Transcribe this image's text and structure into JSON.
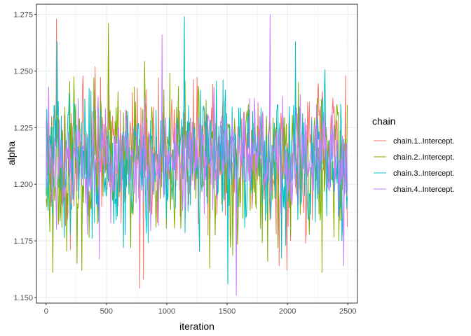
{
  "chart_data": {
    "type": "line",
    "title": "",
    "xlabel": "iteration",
    "ylabel": "alpha",
    "xlim": [
      -80,
      2580
    ],
    "ylim": [
      1.1475,
      1.2795
    ],
    "x_ticks": [
      0,
      500,
      1000,
      1500,
      2000,
      2500
    ],
    "x_tick_labels": [
      "0",
      "500",
      "1000",
      "1500",
      "2000",
      "2500"
    ],
    "y_ticks": [
      1.15,
      1.175,
      1.2,
      1.225,
      1.25,
      1.275
    ],
    "y_tick_labels": [
      "1.150",
      "1.175",
      "1.200",
      "1.225",
      "1.250",
      "1.275"
    ],
    "grid": true,
    "legend_position": "right",
    "legend_title": "chain",
    "iterations": {
      "start": 1,
      "end": 2500,
      "step": 5
    },
    "series": [
      {
        "name": "chain.1..Intercept.",
        "color": "#F8766D",
        "mean": 1.2125,
        "sd": 0.0145,
        "seed": 11,
        "extremes": [
          [
            85,
            1.273
          ],
          [
            200,
            1.171
          ],
          [
            405,
            1.252
          ],
          [
            775,
            1.154
          ],
          [
            805,
            1.158
          ],
          [
            930,
            1.247
          ],
          [
            1930,
            1.164
          ],
          [
            1995,
            1.162
          ],
          [
            2085,
            1.231
          ],
          [
            2480,
            1.248
          ]
        ]
      },
      {
        "name": "chain.2..Intercept.",
        "color": "#7CAE00",
        "mean": 1.2095,
        "sd": 0.015,
        "seed": 23,
        "extremes": [
          [
            30,
            1.179
          ],
          [
            55,
            1.161
          ],
          [
            255,
            1.165
          ],
          [
            295,
            1.162
          ],
          [
            515,
            1.271
          ],
          [
            700,
            1.172
          ],
          [
            1080,
            1.234
          ],
          [
            1355,
            1.163
          ],
          [
            1610,
            1.196
          ],
          [
            2090,
            1.245
          ],
          [
            2285,
            1.161
          ],
          [
            2500,
            1.235
          ]
        ]
      },
      {
        "name": "chain.3..Intercept.",
        "color": "#00BFC4",
        "mean": 1.2105,
        "sd": 0.0145,
        "seed": 37,
        "extremes": [
          [
            90,
            1.263
          ],
          [
            380,
            1.176
          ],
          [
            640,
            1.172
          ],
          [
            1145,
            1.274
          ],
          [
            1465,
            1.246
          ],
          [
            1505,
            1.156
          ],
          [
            1895,
            1.208
          ],
          [
            1985,
            1.173
          ],
          [
            2065,
            1.263
          ],
          [
            2450,
            1.175
          ]
        ]
      },
      {
        "name": "chain.4..Intercept.",
        "color": "#C77CFF",
        "mean": 1.2115,
        "sd": 0.012,
        "seed": 53,
        "extremes": [
          [
            20,
            1.243
          ],
          [
            440,
            1.167
          ],
          [
            960,
            1.266
          ],
          [
            1195,
            1.229
          ],
          [
            1575,
            1.151
          ],
          [
            1855,
            1.275
          ],
          [
            2325,
            1.205
          ],
          [
            2465,
            1.164
          ]
        ]
      }
    ]
  }
}
